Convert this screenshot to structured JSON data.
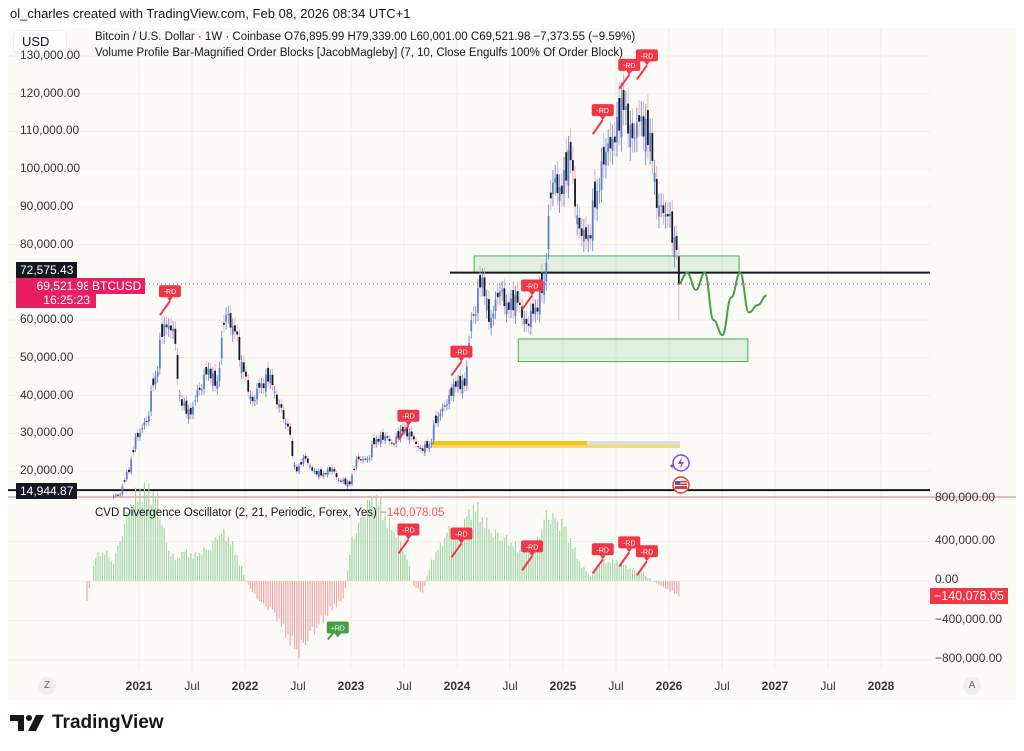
{
  "credit": "ol_charles created with TradingView.com, Feb 08, 2026 08:34 UTC+1",
  "currency_button": "USD",
  "legend": {
    "symbol_line": "Bitcoin / U.S. Dollar · 1W · Coinbase  O76,895.99  H79,339.00  L60,001.00  C69,521.98  −7,373.55 (−9.59%)",
    "indicator_line": "Volume Profile Bar-Magnified Order Blocks [JacobMagleby] (7, 10, Close Engulfs 100% Of Order Block)",
    "cvd_name": "CVD Divergence Oscillator (2, 21, Periodic, Forex, Yes)",
    "cvd_value": "−140,078.05"
  },
  "price_axis": {
    "ticks": [
      "130,000.00",
      "120,000.00",
      "110,000.00",
      "100,000.00",
      "90,000.00",
      "80,000.00",
      "60,000.00",
      "50,000.00",
      "40,000.00",
      "30,000.00",
      "20,000.00"
    ],
    "line_label_upper": "72,575.43",
    "line_label_lower": "14,944.87",
    "last_price": "69,521.98",
    "countdown": "16:25:23",
    "symbol_tag": "BTCUSD"
  },
  "cvd_axis": {
    "ticks": [
      "800,000.00",
      "400,000.00",
      "0.00",
      "−400,000.00",
      "−800,000.00"
    ],
    "last_value": "−140,078.05"
  },
  "time_axis": {
    "labels": [
      {
        "t": "2021",
        "year": true
      },
      {
        "t": "Jul",
        "year": false
      },
      {
        "t": "2022",
        "year": true
      },
      {
        "t": "Jul",
        "year": false
      },
      {
        "t": "2023",
        "year": true
      },
      {
        "t": "Jul",
        "year": false
      },
      {
        "t": "2024",
        "year": true
      },
      {
        "t": "Jul",
        "year": false
      },
      {
        "t": "2025",
        "year": true
      },
      {
        "t": "Jul",
        "year": false
      },
      {
        "t": "2026",
        "year": true
      },
      {
        "t": "Jul",
        "year": false
      },
      {
        "t": "2027",
        "year": true
      },
      {
        "t": "Jul",
        "year": false
      },
      {
        "t": "2028",
        "year": true
      }
    ],
    "zoom_button": "Z",
    "auto_button": "A"
  },
  "logo_text": "TradingView",
  "colors": {
    "up": "#5b7fd6",
    "down": "#131722",
    "last_price": "#e91e63",
    "rd_bear": "#f23645",
    "rd_bull": "#43a047",
    "hist_pos": "#a5d6a7",
    "hist_neg": "#f4a9a9",
    "zone": "#4caf50",
    "volume": "#f5c518"
  },
  "chart_data": [
    {
      "type": "candlestick",
      "title": "Bitcoin / U.S. Dollar · 1W · Coinbase",
      "ylim": [
        10000,
        135000
      ],
      "monthly_close": {
        "months": [
          "2020-10",
          "2020-11",
          "2020-12",
          "2021-01",
          "2021-02",
          "2021-03",
          "2021-04",
          "2021-05",
          "2021-06",
          "2021-07",
          "2021-08",
          "2021-09",
          "2021-10",
          "2021-11",
          "2021-12",
          "2022-01",
          "2022-02",
          "2022-03",
          "2022-04",
          "2022-05",
          "2022-06",
          "2022-07",
          "2022-08",
          "2022-09",
          "2022-10",
          "2022-11",
          "2022-12",
          "2023-01",
          "2023-02",
          "2023-03",
          "2023-04",
          "2023-05",
          "2023-06",
          "2023-07",
          "2023-08",
          "2023-09",
          "2023-10",
          "2023-11",
          "2023-12",
          "2024-01",
          "2024-02",
          "2024-03",
          "2024-04",
          "2024-05",
          "2024-06",
          "2024-07",
          "2024-08",
          "2024-09",
          "2024-10",
          "2024-11",
          "2024-12",
          "2025-01",
          "2025-02",
          "2025-03",
          "2025-04",
          "2025-05",
          "2025-06",
          "2025-07",
          "2025-08",
          "2025-09",
          "2025-10",
          "2025-11",
          "2025-12",
          "2026-01",
          "2026-02"
        ],
        "values": [
          13800,
          19700,
          29000,
          33100,
          45000,
          58800,
          57700,
          37300,
          35000,
          41500,
          47100,
          43800,
          61300,
          57000,
          46300,
          38500,
          43200,
          45500,
          37700,
          31800,
          19900,
          23300,
          20000,
          19400,
          20500,
          17200,
          16500,
          23100,
          23100,
          28500,
          29200,
          27200,
          30500,
          29200,
          26000,
          27000,
          34500,
          37700,
          42300,
          42600,
          61200,
          71300,
          60600,
          67500,
          62700,
          64600,
          59000,
          63300,
          70300,
          96400,
          93400,
          102400,
          84300,
          82500,
          94200,
          104600,
          107100,
          115700,
          108200,
          114000,
          109600,
          90400,
          87500,
          78600,
          69522
        ]
      },
      "last_bar": {
        "open": 76895.99,
        "high": 79339.0,
        "low": 60001.0,
        "close": 69521.98,
        "change": -7373.55,
        "change_pct": -9.59
      },
      "horizontal_lines": [
        72575.43,
        14944.87
      ],
      "zones": [
        {
          "from": "2024-03",
          "to": "2026-09",
          "top": 77000,
          "bottom": 72575
        },
        {
          "from": "2024-08",
          "to": "2026-10",
          "top": 55000,
          "bottom": 49000
        }
      ],
      "projection": [
        [
          "2026-02",
          69500
        ],
        [
          "2026-03",
          72500
        ],
        [
          "2026-04",
          68000
        ],
        [
          "2026-05",
          72500
        ],
        [
          "2026-06",
          60000
        ],
        [
          "2026-07",
          56000
        ],
        [
          "2026-08",
          66000
        ],
        [
          "2026-09",
          72500
        ],
        [
          "2026-10",
          62000
        ],
        [
          "2026-11",
          64000
        ],
        [
          "2026-12",
          66500
        ]
      ],
      "annotations": [
        {
          "text": "-RD",
          "date": "2021-04",
          "price": 65000
        },
        {
          "text": "-RD",
          "date": "2023-07",
          "price": 32000
        },
        {
          "text": "-RD",
          "date": "2024-01",
          "price": 49000
        },
        {
          "text": "-RD",
          "date": "2024-09",
          "price": 66500
        },
        {
          "text": "-RD",
          "date": "2025-05",
          "price": 113000
        },
        {
          "text": "-RD",
          "date": "2025-08",
          "price": 125000
        },
        {
          "text": "-RD",
          "date": "2025-10",
          "price": 127500
        }
      ]
    },
    {
      "type": "bar",
      "title": "CVD Divergence Oscillator (2, 21, Periodic, Forex, Yes)",
      "ylim": [
        -900000,
        850000
      ],
      "months": [
        "2020-07",
        "2020-08",
        "2020-09",
        "2020-10",
        "2020-11",
        "2020-12",
        "2021-01",
        "2021-02",
        "2021-03",
        "2021-04",
        "2021-05",
        "2021-06",
        "2021-07",
        "2021-08",
        "2021-09",
        "2021-10",
        "2021-11",
        "2021-12",
        "2022-01",
        "2022-02",
        "2022-03",
        "2022-04",
        "2022-05",
        "2022-06",
        "2022-07",
        "2022-08",
        "2022-09",
        "2022-10",
        "2022-11",
        "2022-12",
        "2023-01",
        "2023-02",
        "2023-03",
        "2023-04",
        "2023-05",
        "2023-06",
        "2023-07",
        "2023-08",
        "2023-09",
        "2023-10",
        "2023-11",
        "2023-12",
        "2024-01",
        "2024-02",
        "2024-03",
        "2024-04",
        "2024-05",
        "2024-06",
        "2024-07",
        "2024-08",
        "2024-09",
        "2024-10",
        "2024-11",
        "2024-12",
        "2025-01",
        "2025-02",
        "2025-03",
        "2025-04",
        "2025-05",
        "2025-06",
        "2025-07",
        "2025-08",
        "2025-09",
        "2025-10",
        "2025-11",
        "2025-12",
        "2026-01",
        "2026-02"
      ],
      "values": [
        -200000,
        250000,
        300000,
        200000,
        500000,
        800000,
        900000,
        900000,
        800000,
        350000,
        200000,
        300000,
        250000,
        300000,
        350000,
        500000,
        450000,
        250000,
        0,
        -150000,
        -250000,
        -300000,
        -450000,
        -600000,
        -700000,
        -550000,
        -450000,
        -350000,
        -250000,
        -200000,
        400000,
        600000,
        800000,
        800000,
        600000,
        500000,
        300000,
        -50000,
        -120000,
        200000,
        350000,
        500000,
        400000,
        650000,
        750000,
        600000,
        500000,
        450000,
        400000,
        300000,
        350000,
        400000,
        650000,
        600000,
        550000,
        350000,
        150000,
        50000,
        200000,
        200000,
        200000,
        150000,
        100000,
        80000,
        0,
        -50000,
        -100000,
        -140078
      ],
      "annotations": [
        {
          "text": "-RD",
          "date": "2023-07",
          "value": 420000
        },
        {
          "text": "-RD",
          "date": "2024-01",
          "value": 380000
        },
        {
          "text": "-RD",
          "date": "2024-09",
          "value": 250000
        },
        {
          "text": "-RD",
          "date": "2025-05",
          "value": 220000
        },
        {
          "text": "-RD",
          "date": "2025-08",
          "value": 290000
        },
        {
          "text": "-RD",
          "date": "2025-10",
          "value": 200000
        },
        {
          "text": "+RD",
          "date": "2022-11",
          "value": -410000
        }
      ]
    }
  ]
}
